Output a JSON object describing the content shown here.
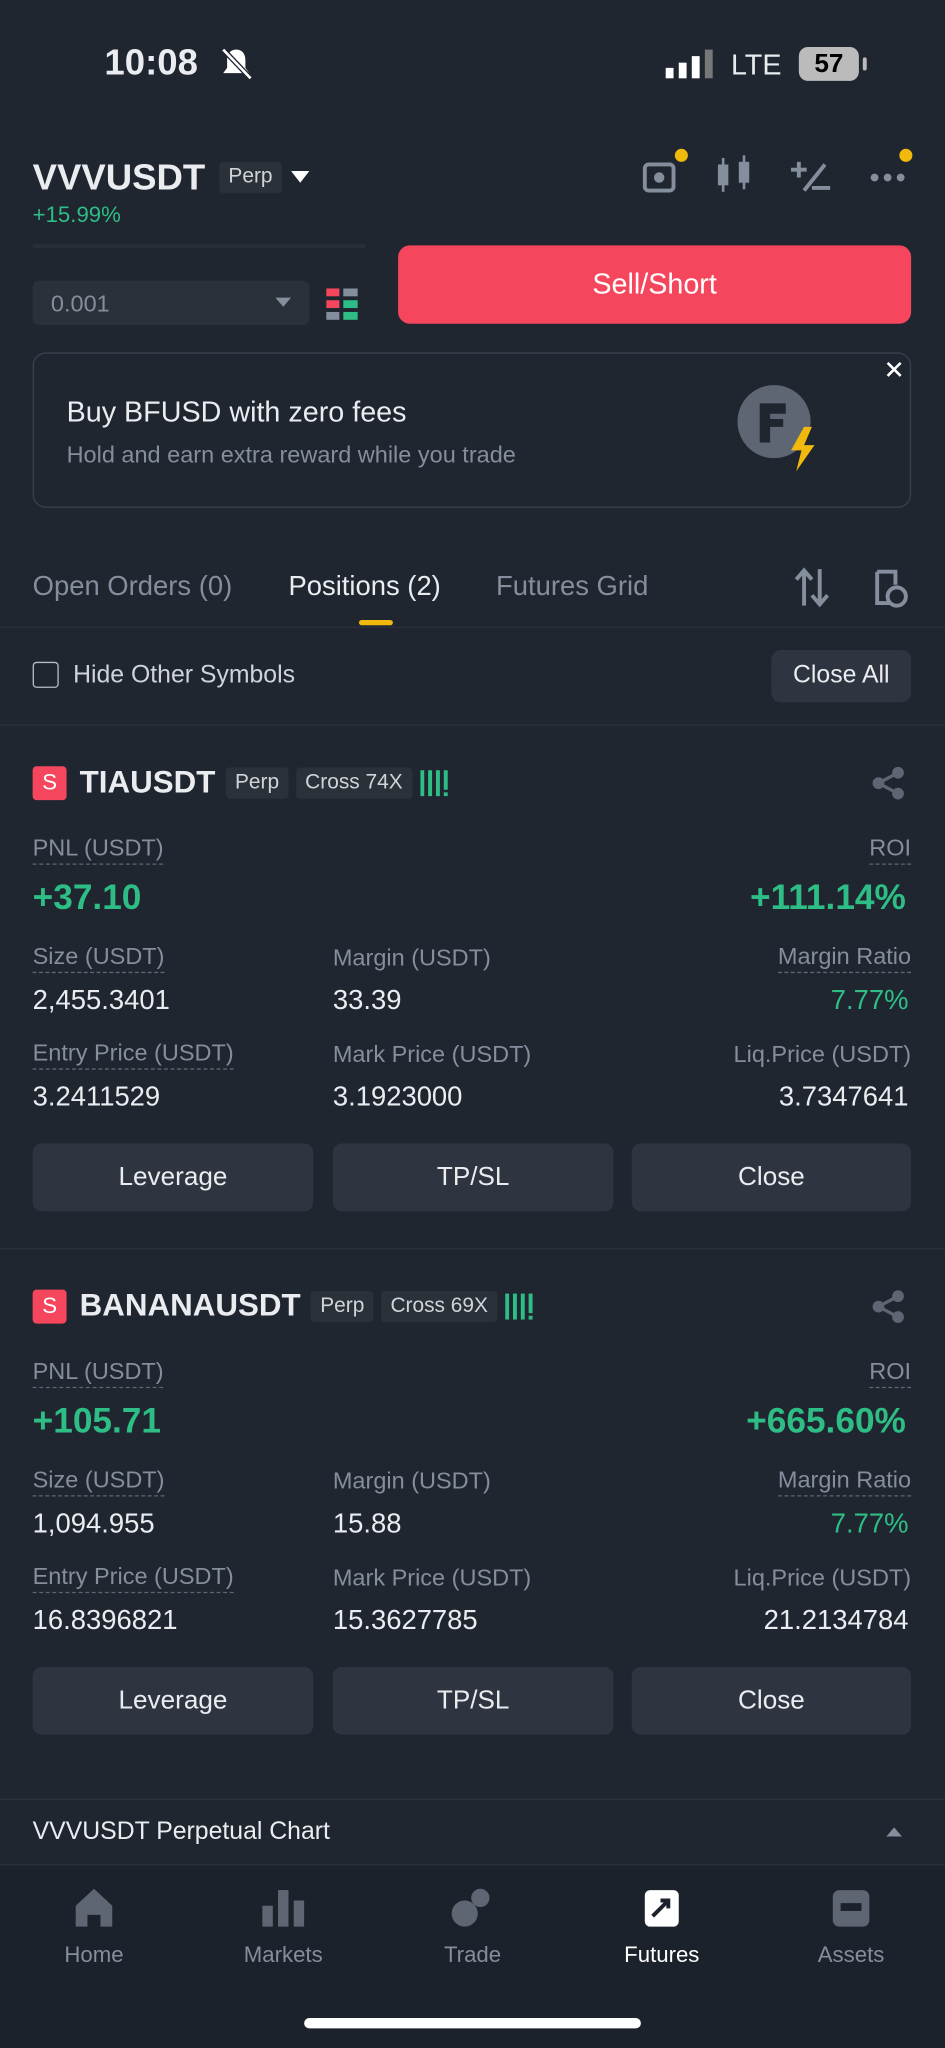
{
  "status": {
    "time": "10:08",
    "network": "LTE",
    "battery": "57"
  },
  "header": {
    "symbol": "VVVUSDT",
    "tag": "Perp",
    "change": "+15.99%"
  },
  "order": {
    "quantity": "0.001",
    "sell_button": "Sell/Short"
  },
  "banner": {
    "title": "Buy BFUSD with zero fees",
    "subtitle": "Hold and earn extra reward while you trade"
  },
  "tabs": [
    "Open Orders (0)",
    "Positions (2)",
    "Futures Grid"
  ],
  "filter": {
    "hide_label": "Hide Other Symbols",
    "close_all": "Close All"
  },
  "positions": [
    {
      "side": "S",
      "symbol": "TIAUSDT",
      "tag": "Perp",
      "mode": "Cross 74X",
      "pnl_label": "PNL (USDT)",
      "pnl": "+37.10",
      "roi_label": "ROI",
      "roi": "+111.14%",
      "size_label": "Size (USDT)",
      "size": "2,455.3401",
      "margin_label": "Margin (USDT)",
      "margin": "33.39",
      "margin_ratio_label": "Margin Ratio",
      "margin_ratio": "7.77%",
      "entry_label": "Entry Price (USDT)",
      "entry": "3.2411529",
      "mark_label": "Mark Price (USDT)",
      "mark": "3.1923000",
      "liq_label": "Liq.Price (USDT)",
      "liq": "3.7347641",
      "buttons": [
        "Leverage",
        "TP/SL",
        "Close"
      ]
    },
    {
      "side": "S",
      "symbol": "BANANAUSDT",
      "tag": "Perp",
      "mode": "Cross 69X",
      "pnl_label": "PNL (USDT)",
      "pnl": "+105.71",
      "roi_label": "ROI",
      "roi": "+665.60%",
      "size_label": "Size (USDT)",
      "size": "1,094.955",
      "margin_label": "Margin (USDT)",
      "margin": "15.88",
      "margin_ratio_label": "Margin Ratio",
      "margin_ratio": "7.77%",
      "entry_label": "Entry Price (USDT)",
      "entry": "16.8396821",
      "mark_label": "Mark Price (USDT)",
      "mark": "15.3627785",
      "liq_label": "Liq.Price (USDT)",
      "liq": "21.2134784",
      "buttons": [
        "Leverage",
        "TP/SL",
        "Close"
      ]
    }
  ],
  "chart_bar": "VVVUSDT Perpetual  Chart",
  "nav": [
    "Home",
    "Markets",
    "Trade",
    "Futures",
    "Assets"
  ]
}
